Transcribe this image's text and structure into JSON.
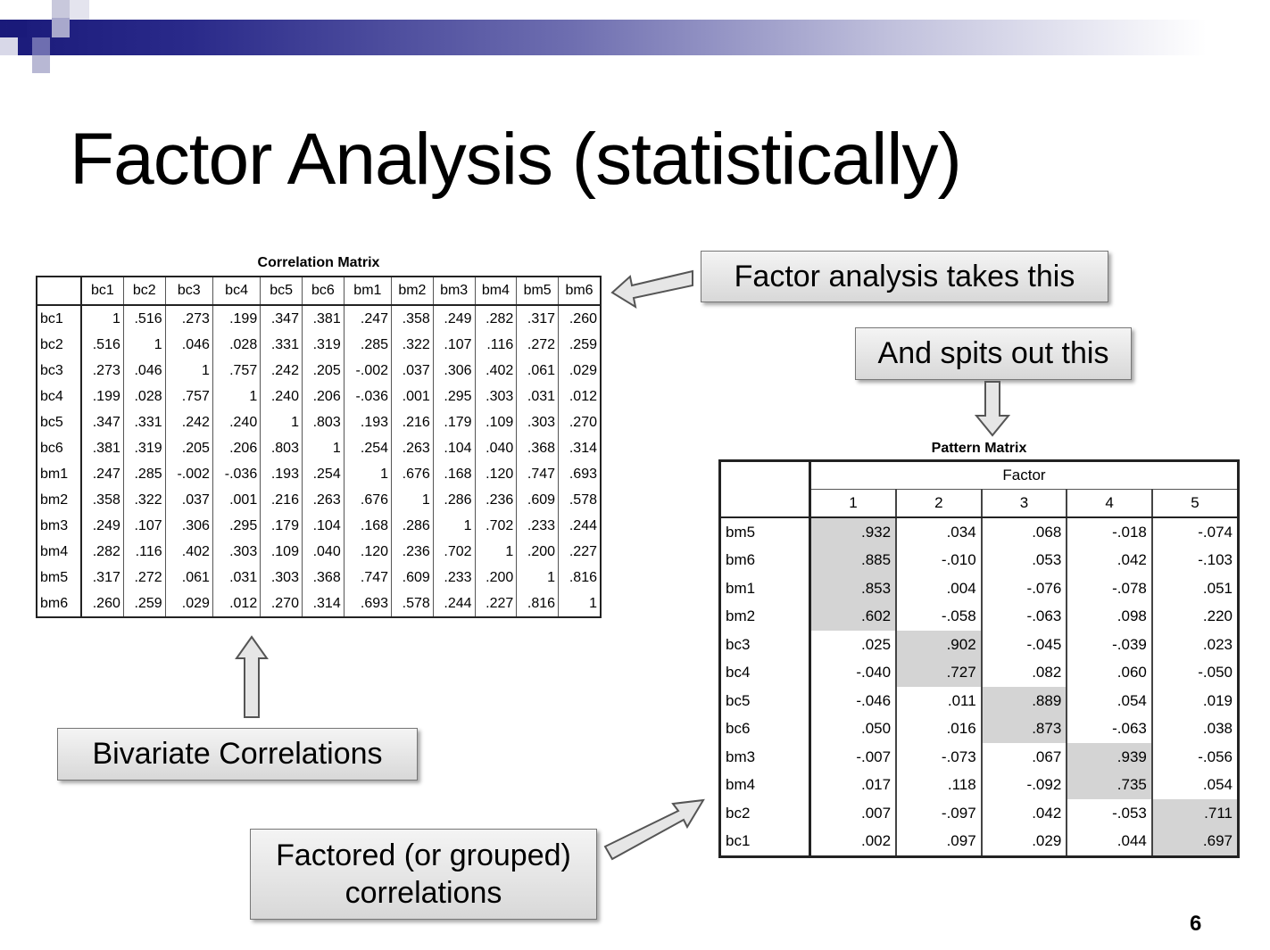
{
  "slide": {
    "title": "Factor Analysis (statistically)",
    "page_number": "6"
  },
  "correlation_matrix": {
    "caption": "Correlation Matrix",
    "columns": [
      "bc1",
      "bc2",
      "bc3",
      "bc4",
      "bc5",
      "bc6",
      "bm1",
      "bm2",
      "bm3",
      "bm4",
      "bm5",
      "bm6"
    ],
    "rows": [
      {
        "label": "bc1",
        "values": [
          "1",
          ".516",
          ".273",
          ".199",
          ".347",
          ".381",
          ".247",
          ".358",
          ".249",
          ".282",
          ".317",
          ".260"
        ]
      },
      {
        "label": "bc2",
        "values": [
          ".516",
          "1",
          ".046",
          ".028",
          ".331",
          ".319",
          ".285",
          ".322",
          ".107",
          ".116",
          ".272",
          ".259"
        ]
      },
      {
        "label": "bc3",
        "values": [
          ".273",
          ".046",
          "1",
          ".757",
          ".242",
          ".205",
          "-.002",
          ".037",
          ".306",
          ".402",
          ".061",
          ".029"
        ]
      },
      {
        "label": "bc4",
        "values": [
          ".199",
          ".028",
          ".757",
          "1",
          ".240",
          ".206",
          "-.036",
          ".001",
          ".295",
          ".303",
          ".031",
          ".012"
        ]
      },
      {
        "label": "bc5",
        "values": [
          ".347",
          ".331",
          ".242",
          ".240",
          "1",
          ".803",
          ".193",
          ".216",
          ".179",
          ".109",
          ".303",
          ".270"
        ]
      },
      {
        "label": "bc6",
        "values": [
          ".381",
          ".319",
          ".205",
          ".206",
          ".803",
          "1",
          ".254",
          ".263",
          ".104",
          ".040",
          ".368",
          ".314"
        ]
      },
      {
        "label": "bm1",
        "values": [
          ".247",
          ".285",
          "-.002",
          "-.036",
          ".193",
          ".254",
          "1",
          ".676",
          ".168",
          ".120",
          ".747",
          ".693"
        ]
      },
      {
        "label": "bm2",
        "values": [
          ".358",
          ".322",
          ".037",
          ".001",
          ".216",
          ".263",
          ".676",
          "1",
          ".286",
          ".236",
          ".609",
          ".578"
        ]
      },
      {
        "label": "bm3",
        "values": [
          ".249",
          ".107",
          ".306",
          ".295",
          ".179",
          ".104",
          ".168",
          ".286",
          "1",
          ".702",
          ".233",
          ".244"
        ]
      },
      {
        "label": "bm4",
        "values": [
          ".282",
          ".116",
          ".402",
          ".303",
          ".109",
          ".040",
          ".120",
          ".236",
          ".702",
          "1",
          ".200",
          ".227"
        ]
      },
      {
        "label": "bm5",
        "values": [
          ".317",
          ".272",
          ".061",
          ".031",
          ".303",
          ".368",
          ".747",
          ".609",
          ".233",
          ".200",
          "1",
          ".816"
        ]
      },
      {
        "label": "bm6",
        "values": [
          ".260",
          ".259",
          ".029",
          ".012",
          ".270",
          ".314",
          ".693",
          ".578",
          ".244",
          ".227",
          ".816",
          "1"
        ]
      }
    ]
  },
  "pattern_matrix": {
    "caption": "Pattern Matrix",
    "factor_header": "Factor",
    "columns": [
      "1",
      "2",
      "3",
      "4",
      "5"
    ],
    "highlight_color": "#d4d4d4",
    "rows": [
      {
        "label": "bm5",
        "values": [
          ".932",
          ".034",
          ".068",
          "-.018",
          "-.074"
        ],
        "highlight": 0
      },
      {
        "label": "bm6",
        "values": [
          ".885",
          "-.010",
          ".053",
          ".042",
          "-.103"
        ],
        "highlight": 0
      },
      {
        "label": "bm1",
        "values": [
          ".853",
          ".004",
          "-.076",
          "-.078",
          ".051"
        ],
        "highlight": 0
      },
      {
        "label": "bm2",
        "values": [
          ".602",
          "-.058",
          "-.063",
          ".098",
          ".220"
        ],
        "highlight": 0
      },
      {
        "label": "bc3",
        "values": [
          ".025",
          ".902",
          "-.045",
          "-.039",
          ".023"
        ],
        "highlight": 1
      },
      {
        "label": "bc4",
        "values": [
          "-.040",
          ".727",
          ".082",
          ".060",
          "-.050"
        ],
        "highlight": 1
      },
      {
        "label": "bc5",
        "values": [
          "-.046",
          ".011",
          ".889",
          ".054",
          ".019"
        ],
        "highlight": 2
      },
      {
        "label": "bc6",
        "values": [
          ".050",
          ".016",
          ".873",
          "-.063",
          ".038"
        ],
        "highlight": 2
      },
      {
        "label": "bm3",
        "values": [
          "-.007",
          "-.073",
          ".067",
          ".939",
          "-.056"
        ],
        "highlight": 3
      },
      {
        "label": "bm4",
        "values": [
          ".017",
          ".118",
          "-.092",
          ".735",
          ".054"
        ],
        "highlight": 3
      },
      {
        "label": "bc2",
        "values": [
          ".007",
          "-.097",
          ".042",
          "-.053",
          ".711"
        ],
        "highlight": 4
      },
      {
        "label": "bc1",
        "values": [
          ".002",
          ".097",
          ".029",
          ".044",
          ".697"
        ],
        "highlight": 4
      }
    ]
  },
  "callouts": {
    "takes": "Factor analysis takes this",
    "spits": "And spits out this",
    "bivariate": "Bivariate Correlations",
    "factored_line1": "Factored (or grouped)",
    "factored_line2": "correlations"
  },
  "theme": {
    "header_gradient_start": "#1a1a7a",
    "callout_border": "#777777"
  }
}
